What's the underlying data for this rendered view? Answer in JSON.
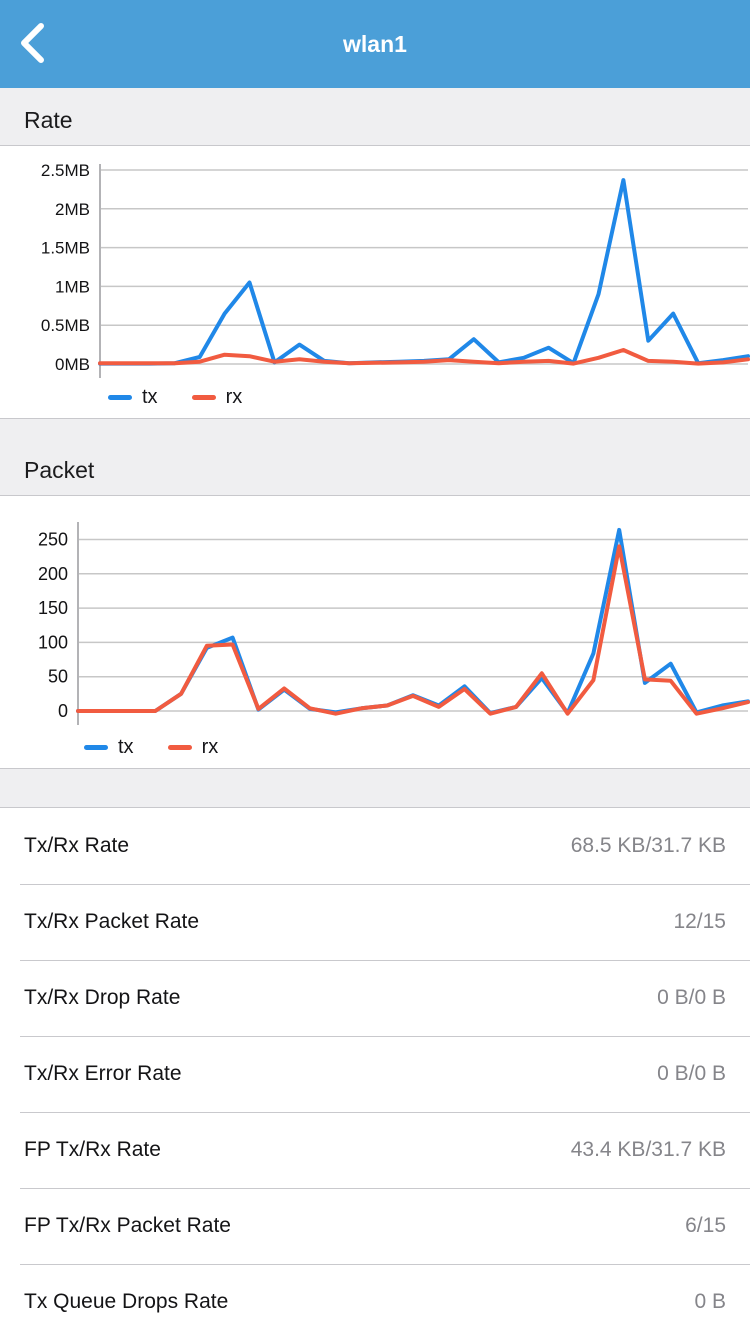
{
  "header": {
    "title": "wlan1",
    "back_icon": "chevron-left"
  },
  "colors": {
    "header_blue": "#4b9fd8",
    "tx_line": "#2088e8",
    "rx_line": "#f15b40",
    "band_gray": "#efeff1",
    "divider_gray": "#c9c9cd",
    "value_gray": "#85858a"
  },
  "sections": {
    "rate_title": "Rate",
    "packet_title": "Packet"
  },
  "chart_data": [
    {
      "type": "line",
      "title": "Rate",
      "unit": "MB",
      "xlabel": "",
      "ylabel": "",
      "ylim": [
        0,
        2.5
      ],
      "grid": true,
      "legend_position": "bottom-left",
      "yticks": [
        {
          "label": "0MB",
          "value": 0
        },
        {
          "label": "0.5MB",
          "value": 0.5
        },
        {
          "label": "1MB",
          "value": 1
        },
        {
          "label": "1.5MB",
          "value": 1.5
        },
        {
          "label": "2MB",
          "value": 2
        },
        {
          "label": "2.5MB",
          "value": 2.5
        }
      ],
      "series": [
        {
          "name": "tx",
          "color": "#2088e8",
          "values": [
            0.005,
            0.005,
            0.005,
            0.01,
            0.09,
            0.65,
            1.05,
            0.02,
            0.25,
            0.04,
            0.01,
            0.02,
            0.03,
            0.04,
            0.06,
            0.32,
            0.02,
            0.08,
            0.21,
            0.01,
            0.9,
            2.37,
            0.3,
            0.65,
            0.01,
            0.05,
            0.1
          ]
        },
        {
          "name": "rx",
          "color": "#f15b40",
          "values": [
            0.01,
            0.01,
            0.01,
            0.01,
            0.03,
            0.12,
            0.1,
            0.03,
            0.06,
            0.03,
            0.01,
            0.015,
            0.02,
            0.03,
            0.05,
            0.03,
            0.01,
            0.03,
            0.04,
            0.005,
            0.08,
            0.18,
            0.04,
            0.03,
            0.005,
            0.02,
            0.06
          ]
        }
      ]
    },
    {
      "type": "line",
      "title": "Packet",
      "unit": "packets",
      "xlabel": "",
      "ylabel": "",
      "ylim": [
        0,
        250
      ],
      "grid": true,
      "legend_position": "bottom-left",
      "yticks": [
        {
          "label": "0",
          "value": 0
        },
        {
          "label": "50",
          "value": 50
        },
        {
          "label": "100",
          "value": 100
        },
        {
          "label": "150",
          "value": 150
        },
        {
          "label": "200",
          "value": 200
        },
        {
          "label": "250",
          "value": 250
        }
      ],
      "series": [
        {
          "name": "tx",
          "color": "#2088e8",
          "values": [
            0,
            0,
            0,
            0,
            25,
            92,
            107,
            2,
            31,
            3,
            -2,
            4,
            8,
            23,
            8,
            36,
            -3,
            6,
            48,
            -3,
            84,
            264,
            41,
            69,
            -2,
            8,
            14
          ]
        },
        {
          "name": "rx",
          "color": "#f15b40",
          "values": [
            0,
            0,
            0,
            0,
            25,
            95,
            97,
            3,
            33,
            4,
            -4,
            4,
            8,
            22,
            6,
            32,
            -4,
            6,
            55,
            -4,
            45,
            240,
            46,
            44,
            -4,
            4,
            13
          ]
        }
      ]
    }
  ],
  "table": {
    "rows": [
      {
        "label": "Tx/Rx Rate",
        "value": "68.5 KB/31.7 KB"
      },
      {
        "label": "Tx/Rx Packet Rate",
        "value": "12/15"
      },
      {
        "label": "Tx/Rx Drop Rate",
        "value": "0 B/0 B"
      },
      {
        "label": "Tx/Rx Error Rate",
        "value": "0 B/0 B"
      },
      {
        "label": "FP Tx/Rx Rate",
        "value": "43.4 KB/31.7 KB"
      },
      {
        "label": "FP Tx/Rx Packet Rate",
        "value": "6/15"
      },
      {
        "label": "Tx Queue Drops Rate",
        "value": "0 B"
      }
    ]
  }
}
